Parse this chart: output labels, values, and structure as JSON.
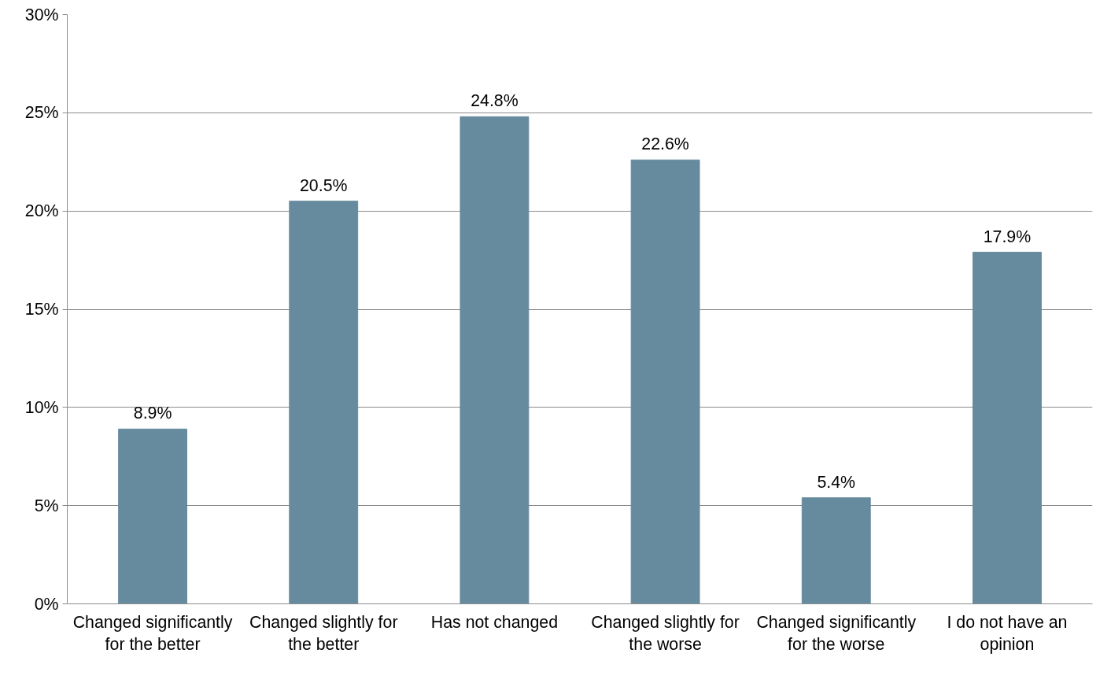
{
  "chart_data": {
    "type": "bar",
    "categories": [
      "Changed significantly for the better",
      "Changed slightly for the better",
      "Has not changed",
      "Changed slightly for the worse",
      "Changed significantly for the worse",
      "I do not have an opinion"
    ],
    "values": [
      8.9,
      20.5,
      24.8,
      22.6,
      5.4,
      17.9
    ],
    "value_labels": [
      "8.9%",
      "20.5%",
      "24.8%",
      "22.6%",
      "5.4%",
      "17.9%"
    ],
    "color": "#668b9e",
    "ylim": [
      0,
      30
    ],
    "yticks": [
      {
        "value": 0,
        "label": "0%"
      },
      {
        "value": 5,
        "label": "5%"
      },
      {
        "value": 10,
        "label": "10%"
      },
      {
        "value": 15,
        "label": "15%"
      },
      {
        "value": 20,
        "label": "20%"
      },
      {
        "value": 25,
        "label": "25%"
      },
      {
        "value": 30,
        "label": "30%"
      }
    ],
    "grid": "y"
  }
}
